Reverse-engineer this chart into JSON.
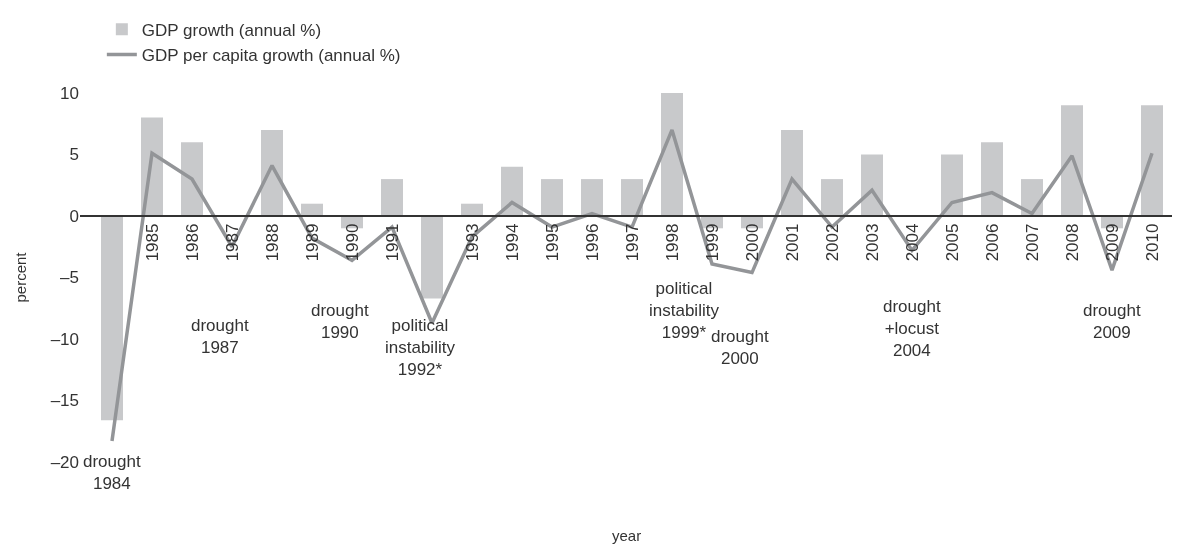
{
  "chart_data": {
    "type": "bar",
    "xlabel": "year",
    "ylabel": "percent",
    "categories": [
      null,
      "1985",
      "1986",
      "1987",
      "1988",
      "1989",
      "1990",
      "1991",
      null,
      "1993",
      "1994",
      "1995",
      "1996",
      "1997",
      "1998",
      "1999",
      "2000",
      "2001",
      "2002",
      "2003",
      "2004",
      "2005",
      "2006",
      "2007",
      "2008",
      "2009",
      "2010"
    ],
    "series": [
      {
        "name": "GDP growth (annual %)",
        "color": "#c8c9cb",
        "values": [
          -16.6,
          8,
          6,
          0,
          7,
          1,
          -1,
          3,
          -6.7,
          1,
          4,
          3,
          3,
          3,
          10,
          -1,
          -1,
          7,
          3,
          5,
          0,
          5,
          6,
          3,
          9,
          -1,
          9
        ]
      },
      {
        "name": "GDP per capita growth (annual %)",
        "type": "line",
        "color": "#939598",
        "values": [
          -18.3,
          5.1,
          3.0,
          -2.5,
          4.1,
          -1.8,
          -3.6,
          -0.9,
          -8.7,
          -1.7,
          1.1,
          -0.9,
          0.2,
          -0.9,
          7.0,
          -3.9,
          -4.6,
          3.0,
          -0.9,
          2.1,
          -2.8,
          1.1,
          1.9,
          0.2,
          4.9,
          -4.4,
          5.1
        ]
      }
    ],
    "ylim": [
      -20,
      10
    ],
    "yticks": [
      10,
      5,
      0,
      {
        "value": -5,
        "label": "–5"
      },
      {
        "value": -10,
        "label": "–10"
      },
      {
        "value": -15,
        "label": "–15"
      },
      {
        "value": -20,
        "label": "–20"
      }
    ],
    "grid": false,
    "legend": "top left",
    "marker": "none",
    "line_style": "solid",
    "annotations": [
      "drought\n1984",
      "drought\n1987",
      "drought\n1990",
      "political\ninstability\n1992*",
      "political\ninstability\n1999*",
      "drought\n2000",
      "drought\n+locust\n2004",
      "drought\n2009"
    ]
  }
}
